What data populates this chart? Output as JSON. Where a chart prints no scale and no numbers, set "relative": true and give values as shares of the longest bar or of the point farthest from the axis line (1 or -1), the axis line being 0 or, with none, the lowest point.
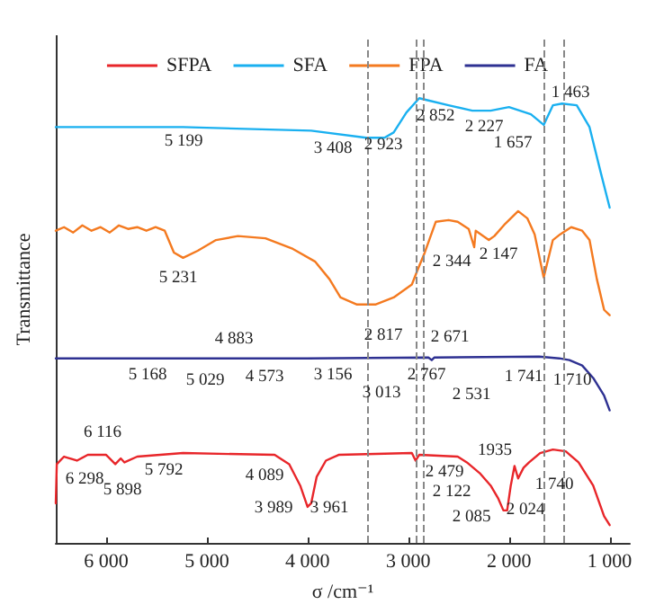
{
  "chart_data": {
    "type": "line",
    "relative": true,
    "ylabel": "Transmittance",
    "xlabel": "σ /cm⁻¹",
    "xlim": [
      6500,
      800
    ],
    "xticks": [
      {
        "value": 6000,
        "label": "6 000"
      },
      {
        "value": 5000,
        "label": "5 000"
      },
      {
        "value": 4000,
        "label": "4 000"
      },
      {
        "value": 3000,
        "label": "3 000"
      },
      {
        "value": 2000,
        "label": "2 000"
      },
      {
        "value": 1000,
        "label": "1 000"
      }
    ],
    "legend": "top",
    "grid": false,
    "marker": "none",
    "line_style": "solid",
    "series": [
      {
        "name": "SFPA",
        "color": "#e8262a",
        "x": [
          6500,
          6490,
          6418,
          6290,
          6182,
          6000,
          5909,
          5855,
          5818,
          5691,
          5236,
          4327,
          4182,
          4073,
          4000,
          3964,
          3909,
          3818,
          3691,
          2964,
          2927,
          2891,
          2509,
          2418,
          2291,
          2182,
          2109,
          2055,
          2018,
          1982,
          1945,
          1909,
          1855,
          1800,
          1691,
          1564,
          1436,
          1309,
          1164,
          1055,
          1000
        ],
        "values": [
          0.089,
          0.177,
          0.194,
          0.185,
          0.198,
          0.198,
          0.177,
          0.19,
          0.181,
          0.194,
          0.202,
          0.198,
          0.177,
          0.129,
          0.081,
          0.089,
          0.149,
          0.185,
          0.198,
          0.202,
          0.185,
          0.198,
          0.194,
          0.181,
          0.157,
          0.129,
          0.101,
          0.073,
          0.073,
          0.129,
          0.173,
          0.145,
          0.169,
          0.181,
          0.202,
          0.21,
          0.206,
          0.181,
          0.129,
          0.06,
          0.04
        ]
      },
      {
        "name": "SFA",
        "color": "#1ab0f0",
        "x": [
          6500,
          5236,
          3964,
          3418,
          3236,
          3145,
          3018,
          2891,
          2818,
          2600,
          2364,
          2182,
          2000,
          1782,
          1655,
          1564,
          1473,
          1327,
          1200,
          1091,
          1000
        ],
        "values": [
          0.935,
          0.935,
          0.927,
          0.911,
          0.911,
          0.923,
          0.968,
          1,
          0.996,
          0.984,
          0.972,
          0.972,
          0.98,
          0.964,
          0.94,
          0.984,
          0.988,
          0.984,
          0.935,
          0.835,
          0.754
        ]
      },
      {
        "name": "FPA",
        "color": "#f47a20",
        "x": [
          6500,
          6418,
          6327,
          6236,
          6145,
          6055,
          5964,
          5873,
          5782,
          5691,
          5600,
          5509,
          5418,
          5327,
          5236,
          5091,
          4909,
          4691,
          4418,
          4145,
          3927,
          3782,
          3673,
          3509,
          3327,
          3145,
          2964,
          2909,
          2836,
          2727,
          2600,
          2509,
          2400,
          2345,
          2330,
          2200,
          2145,
          2036,
          1909,
          1818,
          1745,
          1655,
          1564,
          1491,
          1382,
          1273,
          1200,
          1127,
          1055,
          1000
        ],
        "values": [
          0.702,
          0.71,
          0.698,
          0.714,
          0.702,
          0.71,
          0.698,
          0.714,
          0.706,
          0.71,
          0.702,
          0.71,
          0.702,
          0.653,
          0.641,
          0.657,
          0.681,
          0.69,
          0.685,
          0.661,
          0.633,
          0.593,
          0.552,
          0.536,
          0.536,
          0.552,
          0.581,
          0.613,
          0.653,
          0.722,
          0.726,
          0.722,
          0.706,
          0.665,
          0.702,
          0.681,
          0.69,
          0.718,
          0.746,
          0.73,
          0.694,
          0.597,
          0.681,
          0.694,
          0.71,
          0.702,
          0.681,
          0.593,
          0.524,
          0.512
        ]
      },
      {
        "name": "FA",
        "color": "#2e3192",
        "x": [
          6500,
          4000,
          2800,
          2767,
          2740,
          1700,
          1500,
          1400,
          1273,
          1164,
          1055,
          1000
        ],
        "values": [
          0.415,
          0.415,
          0.417,
          0.411,
          0.417,
          0.419,
          0.415,
          0.411,
          0.399,
          0.371,
          0.331,
          0.298
        ]
      }
    ],
    "ref_lines": [
      {
        "axis": "x",
        "value": 3408,
        "color": "#888888",
        "line_style": "dashed"
      },
      {
        "axis": "x",
        "value": 2923,
        "color": "#888888",
        "line_style": "dashed"
      },
      {
        "axis": "x",
        "value": 2852,
        "color": "#888888",
        "line_style": "dashed"
      },
      {
        "axis": "x",
        "value": 1657,
        "color": "#888888",
        "line_style": "dashed"
      },
      {
        "axis": "x",
        "value": 1463,
        "color": "#888888",
        "line_style": "dashed"
      }
    ],
    "annotations": [
      "5 199",
      "3 408",
      "2 923",
      "2 852",
      "2 227",
      "1 657",
      "1 463",
      "5 231",
      "2 344",
      "2 147",
      "4 883",
      "5 168",
      "5 029",
      "4 573",
      "3 156",
      "2 817",
      "2 671",
      "3 013",
      "2 767",
      "2 531",
      "1 741",
      "1 710",
      "6 116",
      "6 298",
      "5 898",
      "5 792",
      "4 089",
      "3 989",
      "3 961",
      "2 479",
      "2 122",
      "2 085",
      "2 024",
      "1935",
      "1 740"
    ]
  }
}
